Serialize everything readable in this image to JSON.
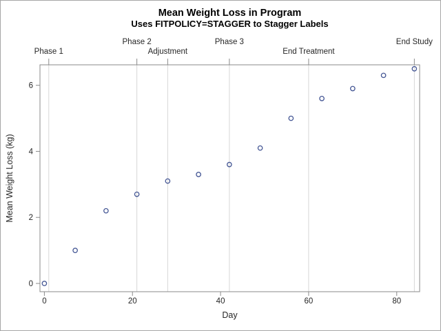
{
  "chart_data": {
    "type": "scatter",
    "title": "Mean Weight Loss in Program",
    "subtitle": "Uses FITPOLICY=STAGGER to Stagger Labels",
    "xlabel": "Day",
    "ylabel": "Mean Weight Loss (kg)",
    "x": [
      0,
      7,
      14,
      21,
      28,
      35,
      42,
      49,
      56,
      63,
      70,
      77,
      84
    ],
    "y": [
      0,
      1.0,
      2.2,
      2.7,
      3.1,
      3.3,
      3.6,
      4.1,
      5.0,
      5.6,
      5.9,
      6.3,
      6.5
    ],
    "xlim": [
      -1,
      85.2
    ],
    "ylim": [
      -0.25,
      6.62
    ],
    "xticks": [
      0,
      20,
      40,
      60,
      80
    ],
    "yticks": [
      0,
      2,
      4,
      6
    ],
    "grid": "off",
    "legend": "none",
    "marker": {
      "shape": "open-circle",
      "color": "#445694"
    },
    "x2axis_labels": [
      {
        "day": 1,
        "text": "Phase 1",
        "row": "lower"
      },
      {
        "day": 21,
        "text": "Phase 2",
        "row": "upper"
      },
      {
        "day": 28,
        "text": "Adjustment",
        "row": "lower"
      },
      {
        "day": 42,
        "text": "Phase 3",
        "row": "upper"
      },
      {
        "day": 60,
        "text": "End Treatment",
        "row": "lower"
      },
      {
        "day": 84,
        "text": "End Study",
        "row": "upper"
      }
    ],
    "reference_line_days": [
      1,
      21,
      28,
      42,
      60,
      84
    ],
    "colors": {
      "marker": "#445694",
      "axis": "#8a8a8a",
      "reference_line": "#d6d6d6",
      "text": "#262626",
      "title_text": "#000000",
      "background": "#ffffff",
      "border": "#a6a6a6"
    }
  }
}
